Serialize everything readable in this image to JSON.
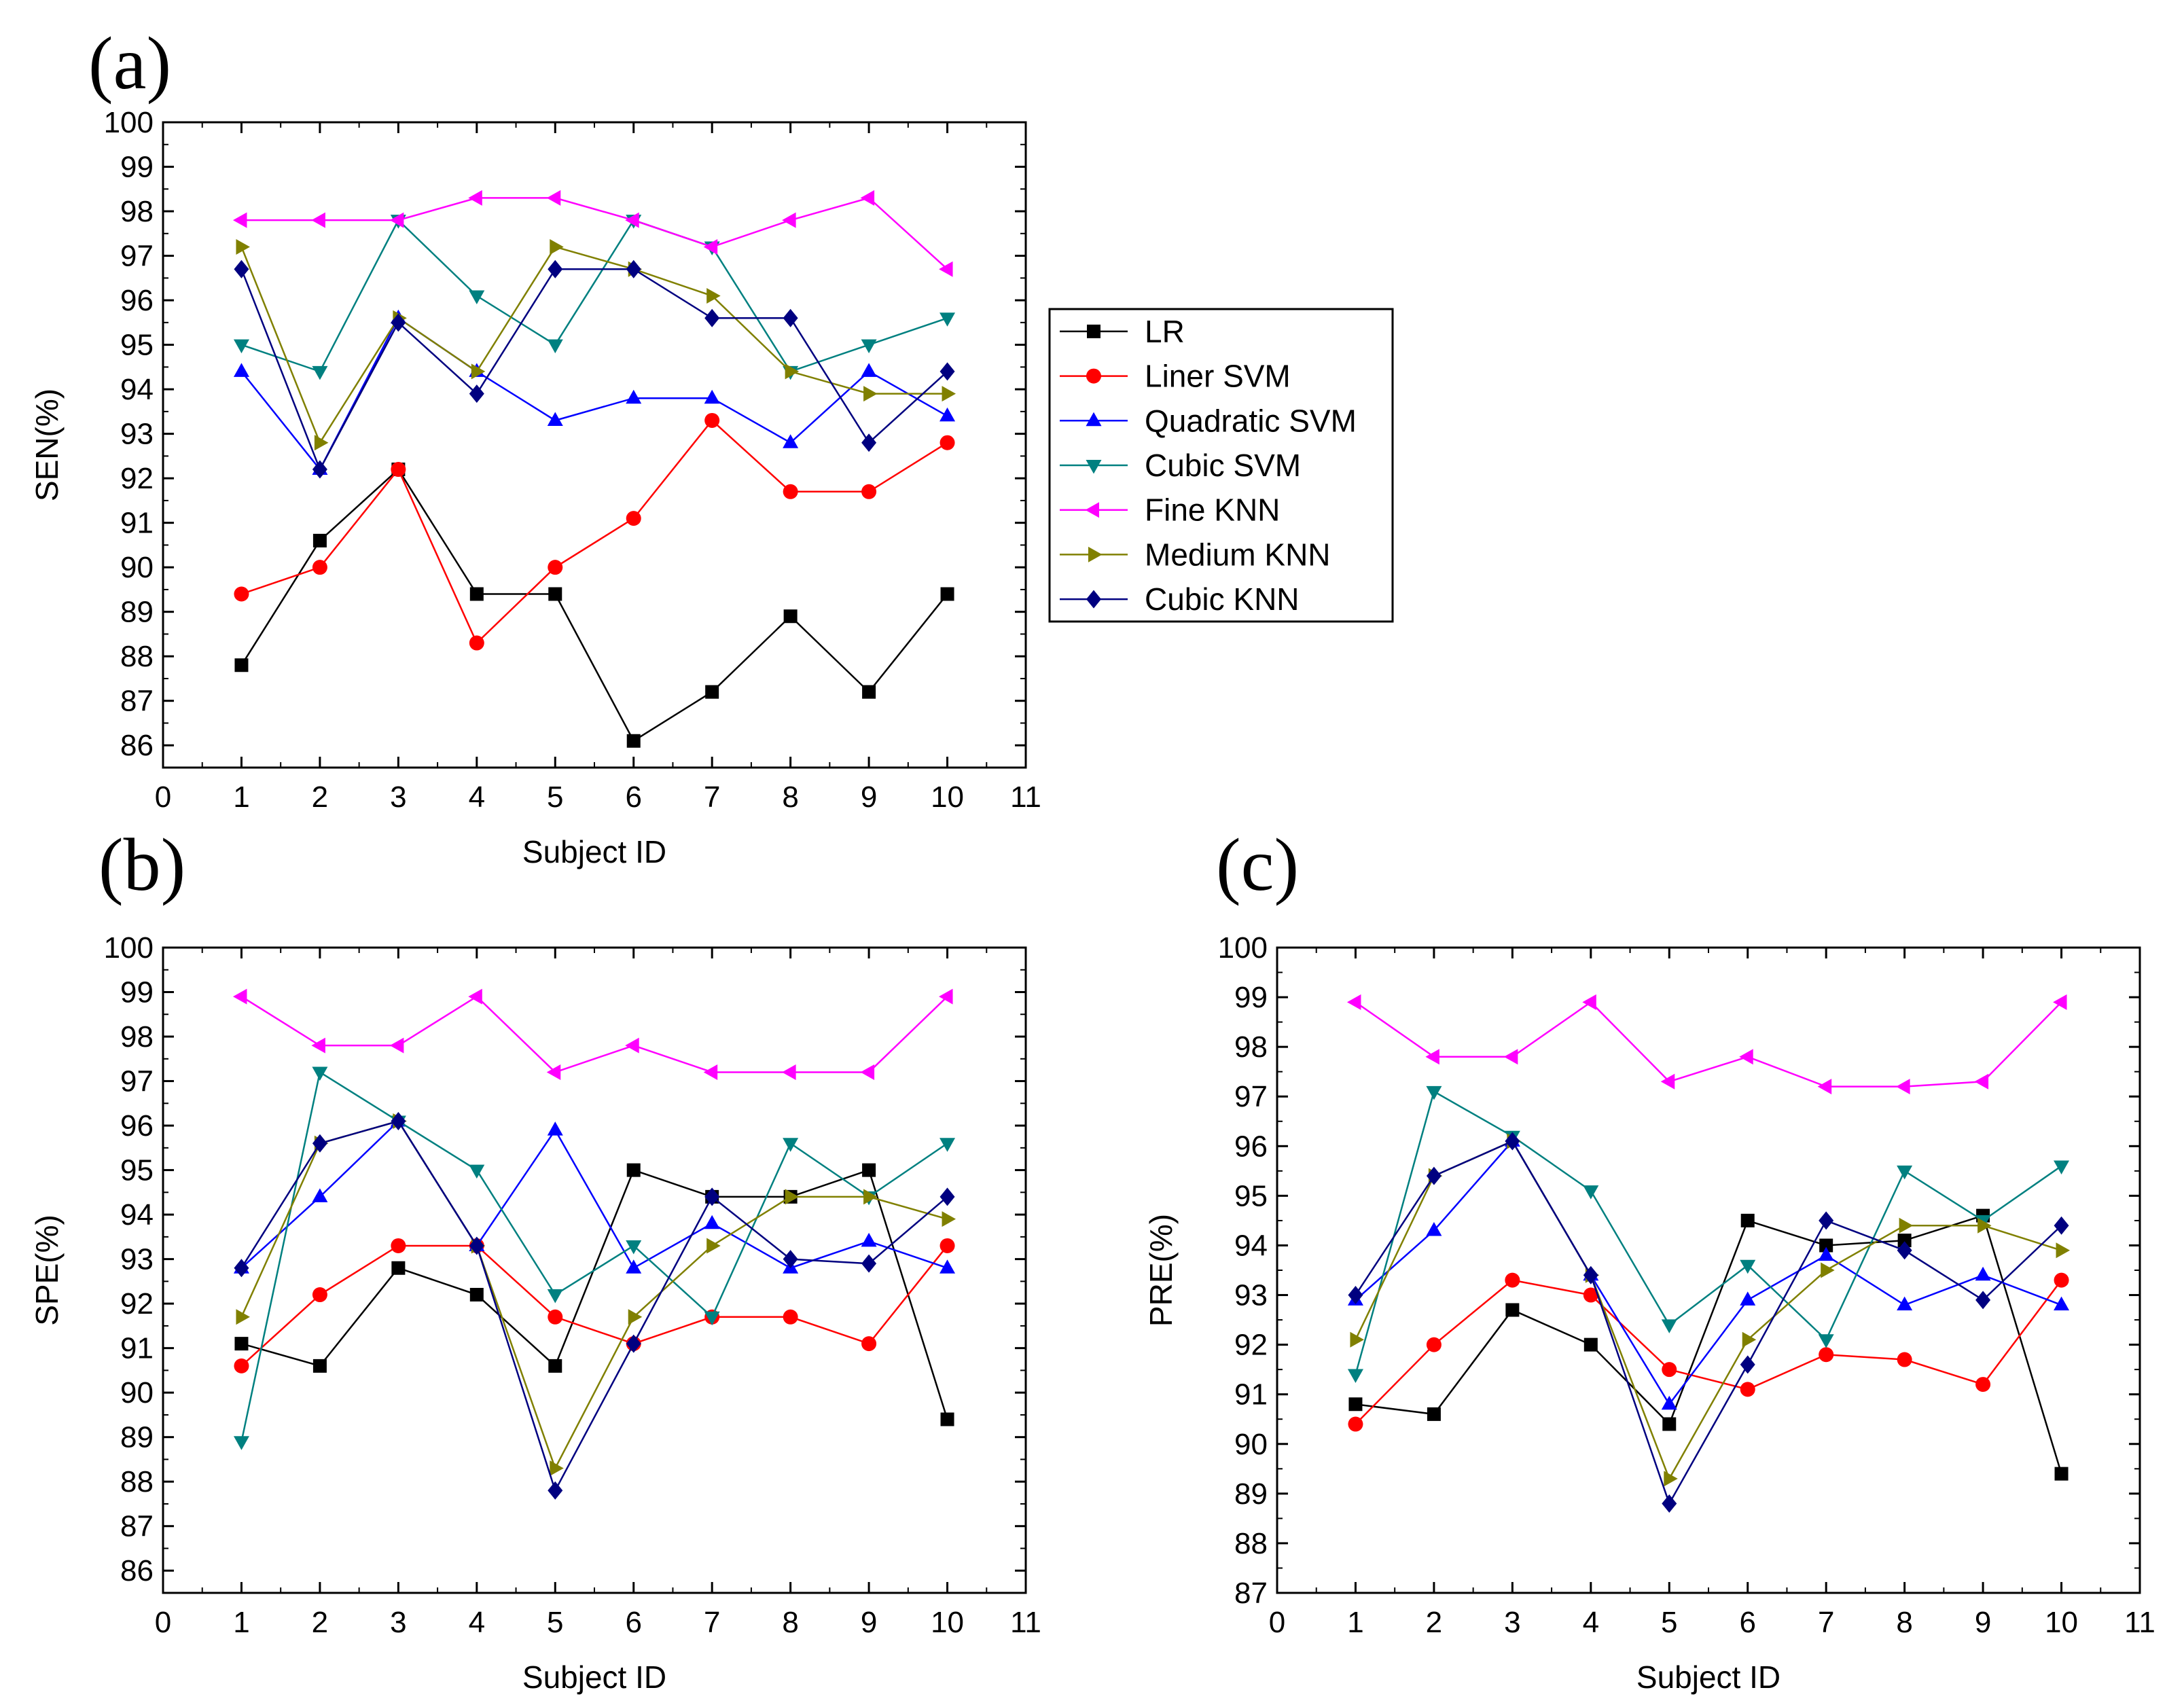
{
  "chart_data": [
    {
      "id": "a",
      "panel_label": "(a)",
      "type": "line",
      "xlabel": "Subject ID",
      "ylabel": "SEN(%)",
      "xlim": [
        0,
        11
      ],
      "ylim": [
        85.5,
        100
      ],
      "xticks": [
        0,
        1,
        2,
        3,
        4,
        5,
        6,
        7,
        8,
        9,
        10,
        11
      ],
      "yticks": [
        86,
        87,
        88,
        89,
        90,
        91,
        92,
        93,
        94,
        95,
        96,
        97,
        98,
        99,
        100
      ],
      "x": [
        1,
        2,
        3,
        4,
        5,
        6,
        7,
        8,
        9,
        10
      ],
      "legend_position": "outside-right",
      "series": [
        {
          "name": "LR",
          "color": "#000000",
          "marker": "square",
          "values": [
            87.8,
            90.6,
            92.2,
            89.4,
            89.4,
            86.1,
            87.2,
            88.9,
            87.2,
            89.4
          ]
        },
        {
          "name": "Liner SVM",
          "color": "#ff0000",
          "marker": "circle",
          "values": [
            89.4,
            90.0,
            92.2,
            88.3,
            90.0,
            91.1,
            93.3,
            91.7,
            91.7,
            92.8
          ]
        },
        {
          "name": "Quadratic SVM",
          "color": "#0000ff",
          "marker": "triangle-up",
          "values": [
            94.4,
            92.2,
            95.6,
            94.4,
            93.3,
            93.8,
            93.8,
            92.8,
            94.4,
            93.4
          ]
        },
        {
          "name": "Cubic SVM",
          "color": "#008080",
          "marker": "triangle-down",
          "values": [
            95.0,
            94.4,
            97.8,
            96.1,
            95.0,
            97.8,
            97.2,
            94.4,
            95.0,
            95.6
          ]
        },
        {
          "name": "Fine KNN",
          "color": "#ff00ff",
          "marker": "triangle-left",
          "values": [
            97.8,
            97.8,
            97.8,
            98.3,
            98.3,
            97.8,
            97.2,
            97.8,
            98.3,
            96.7
          ]
        },
        {
          "name": "Medium KNN",
          "color": "#808000",
          "marker": "triangle-right",
          "values": [
            97.2,
            92.8,
            95.6,
            94.4,
            97.2,
            96.7,
            96.1,
            94.4,
            93.9,
            93.9
          ]
        },
        {
          "name": "Cubic KNN",
          "color": "#000080",
          "marker": "diamond",
          "values": [
            96.7,
            92.2,
            95.5,
            93.9,
            96.7,
            96.7,
            95.6,
            95.6,
            92.8,
            94.4
          ]
        }
      ]
    },
    {
      "id": "b",
      "panel_label": "(b)",
      "type": "line",
      "xlabel": "Subject ID",
      "ylabel": "SPE(%)",
      "xlim": [
        0,
        11
      ],
      "ylim": [
        85.5,
        100
      ],
      "xticks": [
        0,
        1,
        2,
        3,
        4,
        5,
        6,
        7,
        8,
        9,
        10,
        11
      ],
      "yticks": [
        86,
        87,
        88,
        89,
        90,
        91,
        92,
        93,
        94,
        95,
        96,
        97,
        98,
        99,
        100
      ],
      "x": [
        1,
        2,
        3,
        4,
        5,
        6,
        7,
        8,
        9,
        10
      ],
      "series": [
        {
          "name": "LR",
          "color": "#000000",
          "marker": "square",
          "values": [
            91.1,
            90.6,
            92.8,
            92.2,
            90.6,
            95.0,
            94.4,
            94.4,
            95.0,
            89.4
          ]
        },
        {
          "name": "Liner SVM",
          "color": "#ff0000",
          "marker": "circle",
          "values": [
            90.6,
            92.2,
            93.3,
            93.3,
            91.7,
            91.1,
            91.7,
            91.7,
            91.1,
            93.3
          ]
        },
        {
          "name": "Quadratic SVM",
          "color": "#0000ff",
          "marker": "triangle-up",
          "values": [
            92.8,
            94.4,
            96.1,
            93.3,
            95.9,
            92.8,
            93.8,
            92.8,
            93.4,
            92.8
          ]
        },
        {
          "name": "Cubic SVM",
          "color": "#008080",
          "marker": "triangle-down",
          "values": [
            88.9,
            97.2,
            96.1,
            95.0,
            92.2,
            93.3,
            91.7,
            95.6,
            94.4,
            95.6
          ]
        },
        {
          "name": "Fine KNN",
          "color": "#ff00ff",
          "marker": "triangle-left",
          "values": [
            98.9,
            97.8,
            97.8,
            98.9,
            97.2,
            97.8,
            97.2,
            97.2,
            97.2,
            98.9
          ]
        },
        {
          "name": "Medium KNN",
          "color": "#808000",
          "marker": "triangle-right",
          "values": [
            91.7,
            95.6,
            96.1,
            93.3,
            88.3,
            91.7,
            93.3,
            94.4,
            94.4,
            93.9
          ]
        },
        {
          "name": "Cubic KNN",
          "color": "#000080",
          "marker": "diamond",
          "values": [
            92.8,
            95.6,
            96.1,
            93.3,
            87.8,
            91.1,
            94.4,
            93.0,
            92.9,
            94.4
          ]
        }
      ]
    },
    {
      "id": "c",
      "panel_label": "(c)",
      "type": "line",
      "xlabel": "Subject ID",
      "ylabel": "PRE(%)",
      "xlim": [
        0,
        11
      ],
      "ylim": [
        87,
        100
      ],
      "xticks": [
        0,
        1,
        2,
        3,
        4,
        5,
        6,
        7,
        8,
        9,
        10,
        11
      ],
      "yticks": [
        87,
        88,
        89,
        90,
        91,
        92,
        93,
        94,
        95,
        96,
        97,
        98,
        99,
        100
      ],
      "x": [
        1,
        2,
        3,
        4,
        5,
        6,
        7,
        8,
        9,
        10
      ],
      "series": [
        {
          "name": "LR",
          "color": "#000000",
          "marker": "square",
          "values": [
            90.8,
            90.6,
            92.7,
            92.0,
            90.4,
            94.5,
            94.0,
            94.1,
            94.6,
            89.4
          ]
        },
        {
          "name": "Liner SVM",
          "color": "#ff0000",
          "marker": "circle",
          "values": [
            90.4,
            92.0,
            93.3,
            93.0,
            91.5,
            91.1,
            91.8,
            91.7,
            91.2,
            93.3
          ]
        },
        {
          "name": "Quadratic SVM",
          "color": "#0000ff",
          "marker": "triangle-up",
          "values": [
            92.9,
            94.3,
            96.1,
            93.4,
            90.8,
            92.9,
            93.8,
            92.8,
            93.4,
            92.8
          ]
        },
        {
          "name": "Cubic SVM",
          "color": "#008080",
          "marker": "triangle-down",
          "values": [
            91.4,
            97.1,
            96.2,
            95.1,
            92.4,
            93.6,
            92.1,
            95.5,
            94.5,
            95.6
          ]
        },
        {
          "name": "Fine KNN",
          "color": "#ff00ff",
          "marker": "triangle-left",
          "values": [
            98.9,
            97.8,
            97.8,
            98.9,
            97.3,
            97.8,
            97.2,
            97.2,
            97.3,
            98.9
          ]
        },
        {
          "name": "Medium KNN",
          "color": "#808000",
          "marker": "triangle-right",
          "values": [
            92.1,
            95.4,
            96.1,
            93.4,
            89.3,
            92.1,
            93.5,
            94.4,
            94.4,
            93.9
          ]
        },
        {
          "name": "Cubic KNN",
          "color": "#000080",
          "marker": "diamond",
          "values": [
            93.0,
            95.4,
            96.1,
            93.4,
            88.8,
            91.6,
            94.5,
            93.9,
            92.9,
            94.4
          ]
        }
      ]
    }
  ]
}
